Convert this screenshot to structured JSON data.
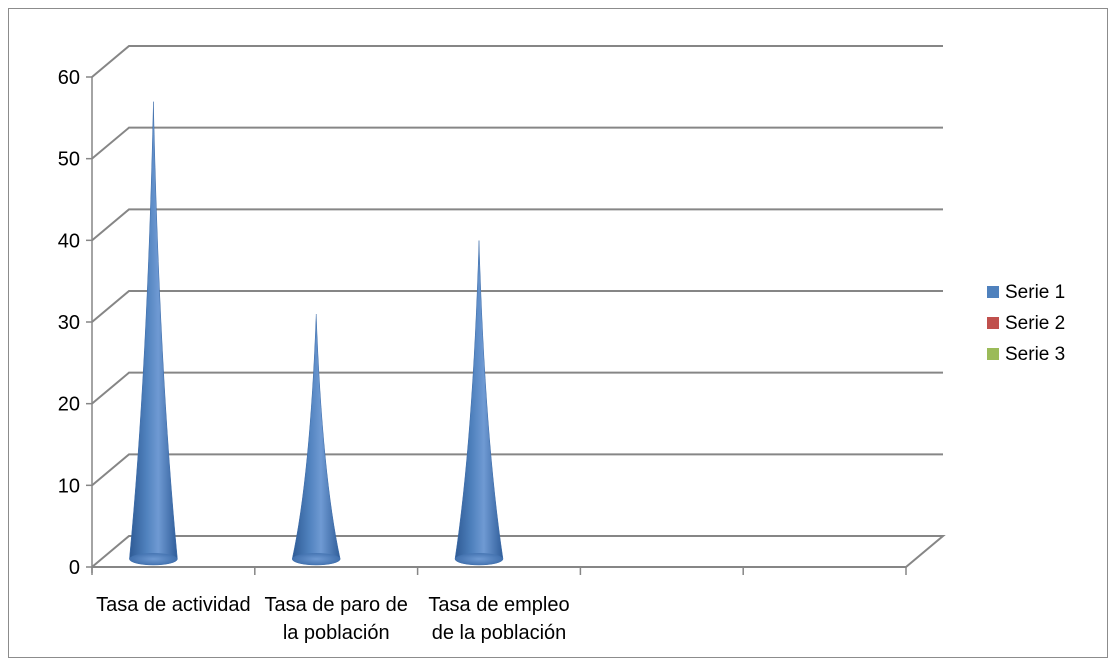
{
  "chart_data": {
    "type": "bar",
    "subtype": "3d-cone",
    "title": "",
    "xlabel": "",
    "ylabel": "",
    "categories": [
      [
        "Tasa de actividad"
      ],
      [
        "Tasa de paro de",
        "la población"
      ],
      [
        "Tasa de empleo",
        "de la población"
      ],
      [],
      []
    ],
    "series": [
      {
        "name": "Serie 1",
        "color": "#4F81BD",
        "values": [
          56,
          30,
          39,
          null,
          null
        ]
      },
      {
        "name": "Serie 2",
        "color": "#C0504D",
        "values": [
          null,
          null,
          null,
          null,
          null
        ]
      },
      {
        "name": "Serie 3",
        "color": "#9BBB59",
        "values": [
          null,
          null,
          null,
          null,
          null
        ]
      }
    ],
    "ylim": [
      0,
      60
    ],
    "yticks": [
      0,
      10,
      20,
      30,
      40,
      50,
      60
    ],
    "grid": true,
    "legend_position": "right"
  }
}
